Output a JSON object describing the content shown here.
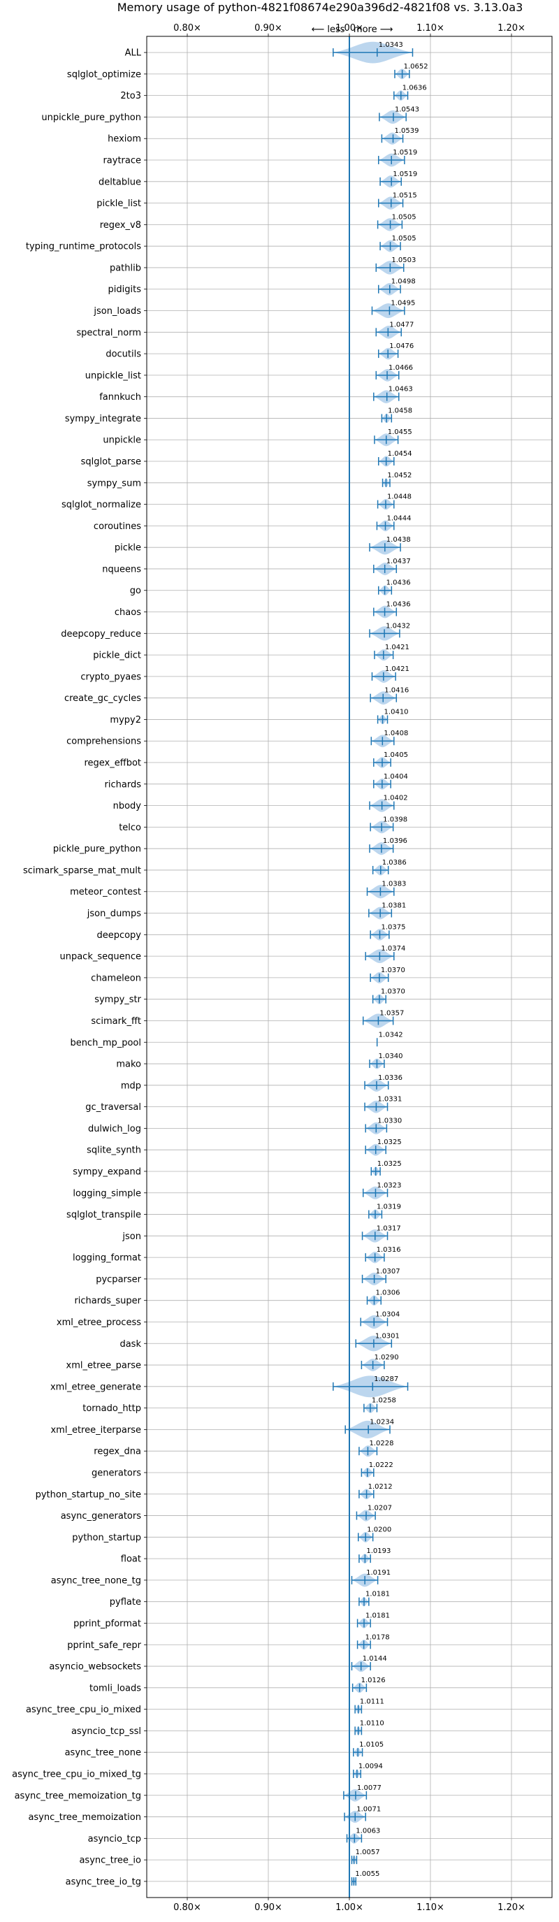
{
  "chart_data": {
    "type": "violin",
    "title": "Memory usage of python-4821f08674e290a396d2-4821f08 vs. 3.13.0a3",
    "annotation": "⟵ less   more ⟶",
    "xlim": [
      0.75,
      1.25
    ],
    "x_ticks": [
      0.8,
      0.9,
      1.0,
      1.1,
      1.2
    ],
    "x_tick_labels": [
      "0.80×",
      "0.90×",
      "1.00×",
      "1.10×",
      "1.20×"
    ],
    "reference_line": 1.0,
    "grid": true,
    "colors": {
      "line": "#1f77b4",
      "violin": "#a6c8e8",
      "grid": "#b0b0b0"
    },
    "benchmarks": [
      {
        "name": "ALL",
        "value": 1.0343,
        "label": "1.0343",
        "min": 0.98,
        "max": 1.078
      },
      {
        "name": "sqlglot_optimize",
        "value": 1.0652,
        "label": "1.0652",
        "min": 1.056,
        "max": 1.074
      },
      {
        "name": "2to3",
        "value": 1.0636,
        "label": "1.0636",
        "min": 1.055,
        "max": 1.072
      },
      {
        "name": "unpickle_pure_python",
        "value": 1.0543,
        "label": "1.0543",
        "min": 1.037,
        "max": 1.07
      },
      {
        "name": "hexiom",
        "value": 1.0539,
        "label": "1.0539",
        "min": 1.04,
        "max": 1.066
      },
      {
        "name": "raytrace",
        "value": 1.0519,
        "label": "1.0519",
        "min": 1.036,
        "max": 1.068
      },
      {
        "name": "deltablue",
        "value": 1.0519,
        "label": "1.0519",
        "min": 1.038,
        "max": 1.064
      },
      {
        "name": "pickle_list",
        "value": 1.0515,
        "label": "1.0515",
        "min": 1.036,
        "max": 1.066
      },
      {
        "name": "regex_v8",
        "value": 1.0505,
        "label": "1.0505",
        "min": 1.035,
        "max": 1.065
      },
      {
        "name": "typing_runtime_protocols",
        "value": 1.0505,
        "label": "1.0505",
        "min": 1.038,
        "max": 1.063
      },
      {
        "name": "pathlib",
        "value": 1.0503,
        "label": "1.0503",
        "min": 1.033,
        "max": 1.067
      },
      {
        "name": "pidigits",
        "value": 1.0498,
        "label": "1.0498",
        "min": 1.036,
        "max": 1.063
      },
      {
        "name": "json_loads",
        "value": 1.0495,
        "label": "1.0495",
        "min": 1.028,
        "max": 1.068
      },
      {
        "name": "spectral_norm",
        "value": 1.0477,
        "label": "1.0477",
        "min": 1.033,
        "max": 1.064
      },
      {
        "name": "docutils",
        "value": 1.0476,
        "label": "1.0476",
        "min": 1.036,
        "max": 1.06
      },
      {
        "name": "unpickle_list",
        "value": 1.0466,
        "label": "1.0466",
        "min": 1.033,
        "max": 1.061
      },
      {
        "name": "fannkuch",
        "value": 1.0463,
        "label": "1.0463",
        "min": 1.03,
        "max": 1.061
      },
      {
        "name": "sympy_integrate",
        "value": 1.0458,
        "label": "1.0458",
        "min": 1.04,
        "max": 1.052
      },
      {
        "name": "unpickle",
        "value": 1.0455,
        "label": "1.0455",
        "min": 1.031,
        "max": 1.06
      },
      {
        "name": "sqlglot_parse",
        "value": 1.0454,
        "label": "1.0454",
        "min": 1.036,
        "max": 1.055
      },
      {
        "name": "sympy_sum",
        "value": 1.0452,
        "label": "1.0452",
        "min": 1.041,
        "max": 1.05
      },
      {
        "name": "sqlglot_normalize",
        "value": 1.0448,
        "label": "1.0448",
        "min": 1.035,
        "max": 1.055
      },
      {
        "name": "coroutines",
        "value": 1.0444,
        "label": "1.0444",
        "min": 1.034,
        "max": 1.055
      },
      {
        "name": "pickle",
        "value": 1.0438,
        "label": "1.0438",
        "min": 1.025,
        "max": 1.063
      },
      {
        "name": "nqueens",
        "value": 1.0437,
        "label": "1.0437",
        "min": 1.03,
        "max": 1.058
      },
      {
        "name": "go",
        "value": 1.0436,
        "label": "1.0436",
        "min": 1.036,
        "max": 1.052
      },
      {
        "name": "chaos",
        "value": 1.0436,
        "label": "1.0436",
        "min": 1.03,
        "max": 1.058
      },
      {
        "name": "deepcopy_reduce",
        "value": 1.0432,
        "label": "1.0432",
        "min": 1.025,
        "max": 1.062
      },
      {
        "name": "pickle_dict",
        "value": 1.0421,
        "label": "1.0421",
        "min": 1.031,
        "max": 1.054
      },
      {
        "name": "crypto_pyaes",
        "value": 1.0421,
        "label": "1.0421",
        "min": 1.028,
        "max": 1.057
      },
      {
        "name": "create_gc_cycles",
        "value": 1.0416,
        "label": "1.0416",
        "min": 1.026,
        "max": 1.058
      },
      {
        "name": "mypy2",
        "value": 1.041,
        "label": "1.0410",
        "min": 1.035,
        "max": 1.047
      },
      {
        "name": "comprehensions",
        "value": 1.0408,
        "label": "1.0408",
        "min": 1.027,
        "max": 1.055
      },
      {
        "name": "regex_effbot",
        "value": 1.0405,
        "label": "1.0405",
        "min": 1.03,
        "max": 1.051
      },
      {
        "name": "richards",
        "value": 1.0404,
        "label": "1.0404",
        "min": 1.03,
        "max": 1.051
      },
      {
        "name": "nbody",
        "value": 1.0402,
        "label": "1.0402",
        "min": 1.025,
        "max": 1.055
      },
      {
        "name": "telco",
        "value": 1.0398,
        "label": "1.0398",
        "min": 1.026,
        "max": 1.054
      },
      {
        "name": "pickle_pure_python",
        "value": 1.0396,
        "label": "1.0396",
        "min": 1.025,
        "max": 1.054
      },
      {
        "name": "scimark_sparse_mat_mult",
        "value": 1.0386,
        "label": "1.0386",
        "min": 1.029,
        "max": 1.048
      },
      {
        "name": "meteor_contest",
        "value": 1.0383,
        "label": "1.0383",
        "min": 1.022,
        "max": 1.055
      },
      {
        "name": "json_dumps",
        "value": 1.0381,
        "label": "1.0381",
        "min": 1.024,
        "max": 1.052
      },
      {
        "name": "deepcopy",
        "value": 1.0375,
        "label": "1.0375",
        "min": 1.026,
        "max": 1.049
      },
      {
        "name": "unpack_sequence",
        "value": 1.0374,
        "label": "1.0374",
        "min": 1.02,
        "max": 1.055
      },
      {
        "name": "chameleon",
        "value": 1.037,
        "label": "1.0370",
        "min": 1.026,
        "max": 1.048
      },
      {
        "name": "sympy_str",
        "value": 1.037,
        "label": "1.0370",
        "min": 1.029,
        "max": 1.045
      },
      {
        "name": "scimark_fft",
        "value": 1.0357,
        "label": "1.0357",
        "min": 1.017,
        "max": 1.054
      },
      {
        "name": "bench_mp_pool",
        "value": 1.0342,
        "label": "1.0342",
        "min": 1.0342,
        "max": 1.0342
      },
      {
        "name": "mako",
        "value": 1.034,
        "label": "1.0340",
        "min": 1.025,
        "max": 1.043
      },
      {
        "name": "mdp",
        "value": 1.0336,
        "label": "1.0336",
        "min": 1.019,
        "max": 1.048
      },
      {
        "name": "gc_traversal",
        "value": 1.0331,
        "label": "1.0331",
        "min": 1.019,
        "max": 1.047
      },
      {
        "name": "dulwich_log",
        "value": 1.033,
        "label": "1.0330",
        "min": 1.02,
        "max": 1.046
      },
      {
        "name": "sqlite_synth",
        "value": 1.0325,
        "label": "1.0325",
        "min": 1.02,
        "max": 1.045
      },
      {
        "name": "sympy_expand",
        "value": 1.0325,
        "label": "1.0325",
        "min": 1.027,
        "max": 1.038
      },
      {
        "name": "logging_simple",
        "value": 1.0323,
        "label": "1.0323",
        "min": 1.017,
        "max": 1.047
      },
      {
        "name": "sqlglot_transpile",
        "value": 1.0319,
        "label": "1.0319",
        "min": 1.024,
        "max": 1.04
      },
      {
        "name": "json",
        "value": 1.0317,
        "label": "1.0317",
        "min": 1.016,
        "max": 1.047
      },
      {
        "name": "logging_format",
        "value": 1.0316,
        "label": "1.0316",
        "min": 1.02,
        "max": 1.043
      },
      {
        "name": "pycparser",
        "value": 1.0307,
        "label": "1.0307",
        "min": 1.016,
        "max": 1.045
      },
      {
        "name": "richards_super",
        "value": 1.0306,
        "label": "1.0306",
        "min": 1.022,
        "max": 1.039
      },
      {
        "name": "xml_etree_process",
        "value": 1.0304,
        "label": "1.0304",
        "min": 1.014,
        "max": 1.047
      },
      {
        "name": "dask",
        "value": 1.0301,
        "label": "1.0301",
        "min": 1.008,
        "max": 1.052
      },
      {
        "name": "xml_etree_parse",
        "value": 1.029,
        "label": "1.0290",
        "min": 1.015,
        "max": 1.043
      },
      {
        "name": "xml_etree_generate",
        "value": 1.0287,
        "label": "1.0287",
        "min": 0.98,
        "max": 1.072
      },
      {
        "name": "tornado_http",
        "value": 1.0258,
        "label": "1.0258",
        "min": 1.018,
        "max": 1.034
      },
      {
        "name": "xml_etree_iterparse",
        "value": 1.0234,
        "label": "1.0234",
        "min": 0.995,
        "max": 1.05
      },
      {
        "name": "regex_dna",
        "value": 1.0228,
        "label": "1.0228",
        "min": 1.012,
        "max": 1.034
      },
      {
        "name": "generators",
        "value": 1.0222,
        "label": "1.0222",
        "min": 1.015,
        "max": 1.03
      },
      {
        "name": "python_startup_no_site",
        "value": 1.0212,
        "label": "1.0212",
        "min": 1.012,
        "max": 1.03
      },
      {
        "name": "async_generators",
        "value": 1.0207,
        "label": "1.0207",
        "min": 1.009,
        "max": 1.032
      },
      {
        "name": "python_startup",
        "value": 1.02,
        "label": "1.0200",
        "min": 1.011,
        "max": 1.029
      },
      {
        "name": "float",
        "value": 1.0193,
        "label": "1.0193",
        "min": 1.012,
        "max": 1.026
      },
      {
        "name": "async_tree_none_tg",
        "value": 1.0191,
        "label": "1.0191",
        "min": 1.003,
        "max": 1.035
      },
      {
        "name": "pyflate",
        "value": 1.0181,
        "label": "1.0181",
        "min": 1.012,
        "max": 1.024
      },
      {
        "name": "pprint_pformat",
        "value": 1.0181,
        "label": "1.0181",
        "min": 1.01,
        "max": 1.026
      },
      {
        "name": "pprint_safe_repr",
        "value": 1.0178,
        "label": "1.0178",
        "min": 1.01,
        "max": 1.026
      },
      {
        "name": "asyncio_websockets",
        "value": 1.0144,
        "label": "1.0144",
        "min": 1.003,
        "max": 1.026
      },
      {
        "name": "tomli_loads",
        "value": 1.0126,
        "label": "1.0126",
        "min": 1.004,
        "max": 1.021
      },
      {
        "name": "async_tree_cpu_io_mixed",
        "value": 1.0111,
        "label": "1.0111",
        "min": 1.007,
        "max": 1.015
      },
      {
        "name": "asyncio_tcp_ssl",
        "value": 1.011,
        "label": "1.0110",
        "min": 1.007,
        "max": 1.015
      },
      {
        "name": "async_tree_none",
        "value": 1.0105,
        "label": "1.0105",
        "min": 1.005,
        "max": 1.016
      },
      {
        "name": "async_tree_cpu_io_mixed_tg",
        "value": 1.0094,
        "label": "1.0094",
        "min": 1.005,
        "max": 1.014
      },
      {
        "name": "async_tree_memoization_tg",
        "value": 1.0077,
        "label": "1.0077",
        "min": 0.993,
        "max": 1.021
      },
      {
        "name": "async_tree_memoization",
        "value": 1.0071,
        "label": "1.0071",
        "min": 0.994,
        "max": 1.02
      },
      {
        "name": "asyncio_tcp",
        "value": 1.0063,
        "label": "1.0063",
        "min": 0.997,
        "max": 1.015
      },
      {
        "name": "async_tree_io",
        "value": 1.0057,
        "label": "1.0057",
        "min": 1.003,
        "max": 1.009
      },
      {
        "name": "async_tree_io_tg",
        "value": 1.0055,
        "label": "1.0055",
        "min": 1.003,
        "max": 1.008
      }
    ]
  }
}
